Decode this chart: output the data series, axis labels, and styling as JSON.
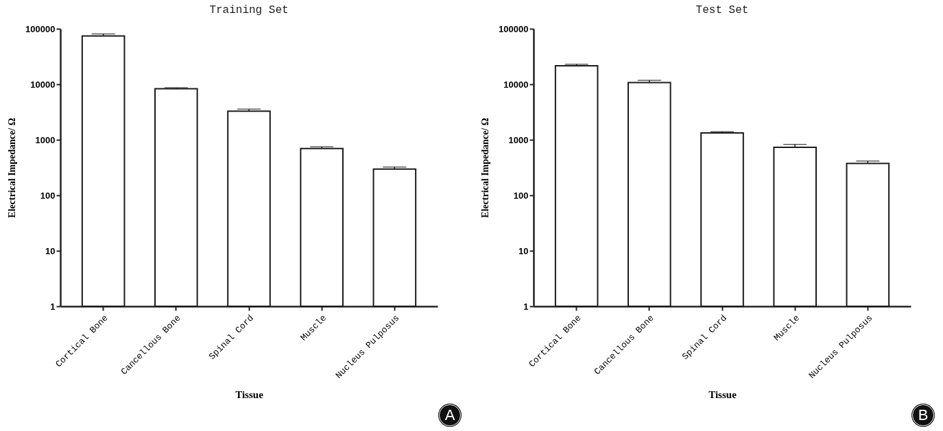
{
  "chart_data": [
    {
      "type": "bar",
      "title": "Training Set",
      "xlabel": "Tissue",
      "ylabel": "Electrical Impedance/ Ω",
      "categories": [
        "Cortical Bone",
        "Cancellous Bone",
        "Spinal Cord",
        "Muscle",
        "Nucleus Pulposus"
      ],
      "values": [
        74000,
        8300,
        3270,
        695,
        297
      ],
      "errors": [
        7000,
        400,
        300,
        50,
        25
      ],
      "color": "#ffffff",
      "log": true,
      "ylim": [
        1,
        100000
      ],
      "yticks": [
        1,
        10,
        100,
        1000,
        10000,
        100000
      ],
      "grid": false,
      "annotations": [
        "A"
      ]
    },
    {
      "type": "bar",
      "title": "Test Set",
      "xlabel": "Tissue",
      "ylabel": "Electrical Impedance/ Ω",
      "categories": [
        "Cortical Bone",
        "Cancellous Bone",
        "Spinal Cord",
        "Muscle",
        "Nucleus Pulposus"
      ],
      "values": [
        21600,
        10700,
        1330,
        731,
        374
      ],
      "errors": [
        1300,
        1100,
        70,
        95,
        40
      ],
      "color": "#ffffff",
      "log": true,
      "ylim": [
        1,
        100000
      ],
      "yticks": [
        1,
        10,
        100,
        1000,
        10000,
        100000
      ],
      "grid": false,
      "annotations": [
        "B"
      ]
    }
  ]
}
